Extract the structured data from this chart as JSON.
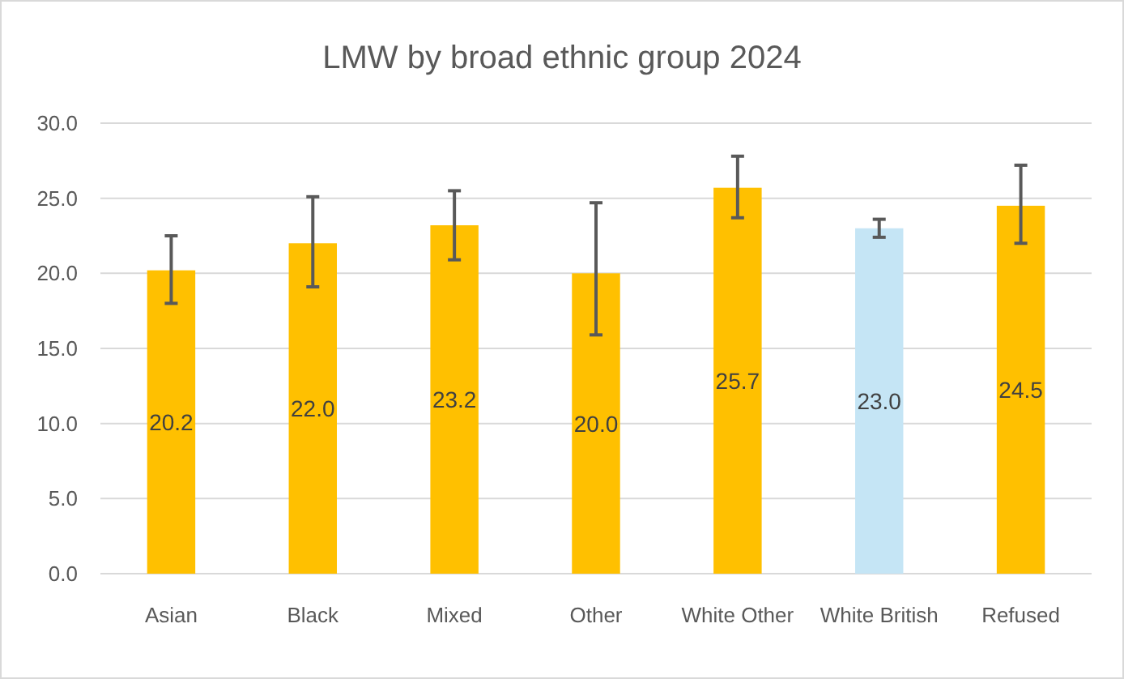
{
  "chart_data": {
    "type": "bar",
    "title": "LMW by broad ethnic group 2024",
    "categories": [
      "Asian",
      "Black",
      "Mixed",
      "Other",
      "White Other",
      "White British",
      "Refused"
    ],
    "values": [
      20.2,
      22.0,
      23.2,
      20.0,
      25.7,
      23.0,
      24.5
    ],
    "colors": [
      "#ffc000",
      "#ffc000",
      "#ffc000",
      "#ffc000",
      "#ffc000",
      "#c5e5f5",
      "#ffc000"
    ],
    "errors": [
      [
        18.0,
        22.5
      ],
      [
        19.1,
        25.1
      ],
      [
        20.9,
        25.5
      ],
      [
        15.9,
        24.7
      ],
      [
        23.7,
        27.8
      ],
      [
        22.4,
        23.6
      ],
      [
        22.0,
        27.2
      ]
    ],
    "ylim": [
      0,
      30
    ],
    "yticks": [
      {
        "value": 0,
        "label": "0.0"
      },
      {
        "value": 5,
        "label": "5.0"
      },
      {
        "value": 10,
        "label": "10.0"
      },
      {
        "value": 15,
        "label": "15.0"
      },
      {
        "value": 20,
        "label": "20.0"
      },
      {
        "value": 25,
        "label": "25.0"
      },
      {
        "value": 30,
        "label": "30.0"
      }
    ],
    "value_labels": [
      "20.2",
      "22.0",
      "23.2",
      "20.0",
      "25.7",
      "23.0",
      "24.5"
    ],
    "grid": "y"
  }
}
